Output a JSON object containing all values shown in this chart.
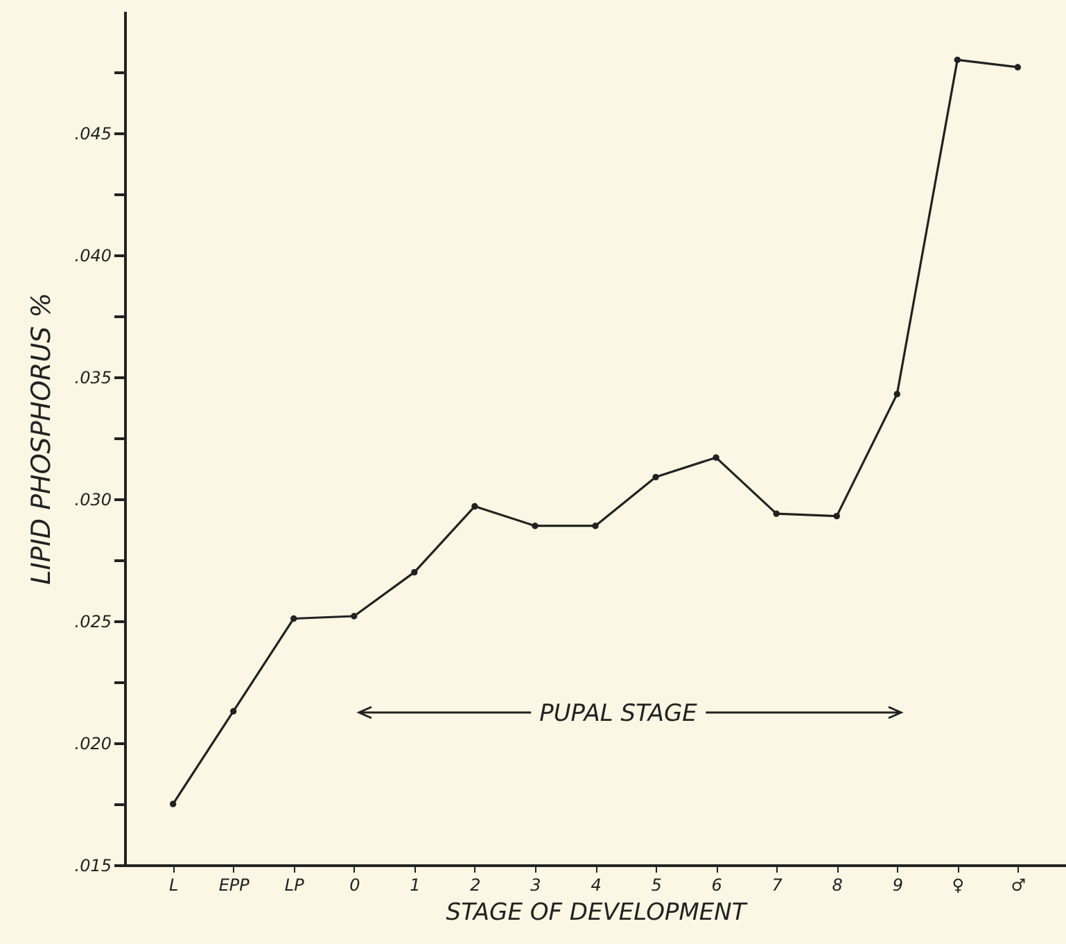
{
  "chart_data": {
    "type": "line",
    "xlabel": "STAGE OF DEVELOPMENT",
    "ylabel": "LIPID PHOSPHORUS %",
    "categories": [
      "L",
      "EPP",
      "LP",
      "0",
      "1",
      "2",
      "3",
      "4",
      "5",
      "6",
      "7",
      "8",
      "9",
      "♀",
      "♂"
    ],
    "series": [
      {
        "color": "#222222",
        "values": [
          0.0175,
          0.0213,
          0.0251,
          0.0252,
          0.027,
          0.0297,
          0.0289,
          0.0289,
          0.0309,
          0.0317,
          0.0294,
          0.0293,
          0.0343,
          0.048,
          0.0477
        ]
      }
    ],
    "ylim": [
      0.015,
      0.05
    ],
    "yticks": [
      {
        "value": 0.015,
        "label": ".015"
      },
      {
        "value": 0.0175,
        "label": null
      },
      {
        "value": 0.02,
        "label": ".020"
      },
      {
        "value": 0.0225,
        "label": null
      },
      {
        "value": 0.025,
        "label": ".025"
      },
      {
        "value": 0.0275,
        "label": null
      },
      {
        "value": 0.03,
        "label": ".030"
      },
      {
        "value": 0.0325,
        "label": null
      },
      {
        "value": 0.035,
        "label": ".035"
      },
      {
        "value": 0.0375,
        "label": null
      },
      {
        "value": 0.04,
        "label": ".040"
      },
      {
        "value": 0.0425,
        "label": null
      },
      {
        "value": 0.045,
        "label": ".045"
      },
      {
        "value": 0.0475,
        "label": null
      }
    ],
    "marker": "circle",
    "line_style": "solid",
    "grid": false,
    "annotations": [
      "PUPAL STAGE"
    ]
  }
}
